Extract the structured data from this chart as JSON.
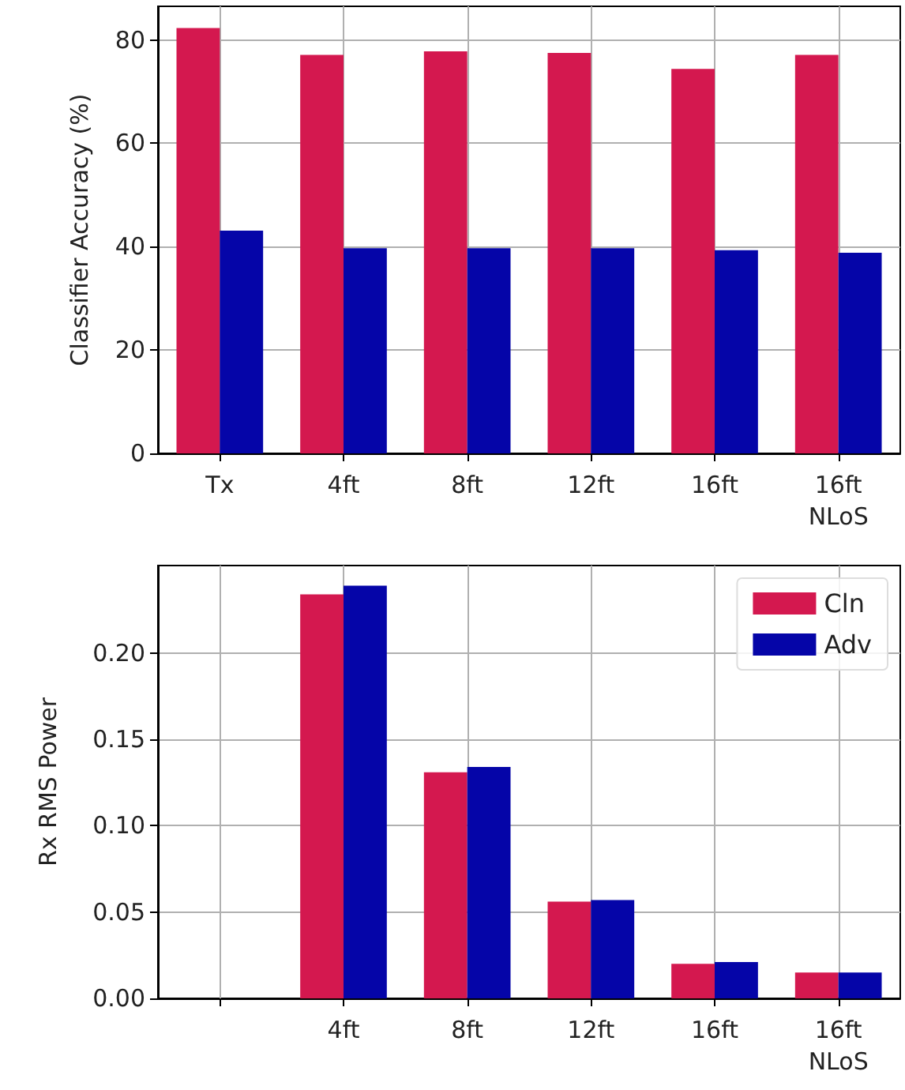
{
  "chart_data": [
    {
      "type": "bar",
      "ylabel": "Classifier Accuracy (%)",
      "categories": [
        "Tx",
        "4ft",
        "8ft",
        "12ft",
        "16ft",
        "16ft\nNLoS"
      ],
      "series": [
        {
          "color": "#d4184f",
          "values": [
            82.3,
            77.1,
            77.8,
            77.5,
            74.4,
            77.1
          ]
        },
        {
          "color": "#0505a8",
          "values": [
            43.1,
            39.7,
            39.7,
            39.7,
            39.3,
            38.8
          ]
        }
      ],
      "ylim": [
        0,
        86.5
      ],
      "yticks": [
        0,
        20,
        40,
        60,
        80
      ],
      "grid": true,
      "legend": false
    },
    {
      "type": "bar",
      "ylabel": "Rx RMS Power",
      "categories": [
        null,
        "4ft",
        "8ft",
        "12ft",
        "16ft",
        "16ft\nNLoS"
      ],
      "series": [
        {
          "name": "Cln",
          "color": "#d4184f",
          "values": [
            null,
            0.234,
            0.131,
            0.056,
            0.02,
            0.015
          ]
        },
        {
          "name": "Adv",
          "color": "#0505a8",
          "values": [
            null,
            0.239,
            0.134,
            0.057,
            0.021,
            0.015
          ]
        }
      ],
      "ylim": [
        0,
        0.2507
      ],
      "yticks": [
        {
          "value": 0,
          "label": "0.00"
        },
        {
          "value": 0.05,
          "label": "0.05"
        },
        {
          "value": 0.1,
          "label": "0.10"
        },
        {
          "value": 0.15,
          "label": "0.15"
        },
        {
          "value": 0.2,
          "label": "0.20"
        }
      ],
      "grid": true,
      "legend": "top right"
    }
  ]
}
